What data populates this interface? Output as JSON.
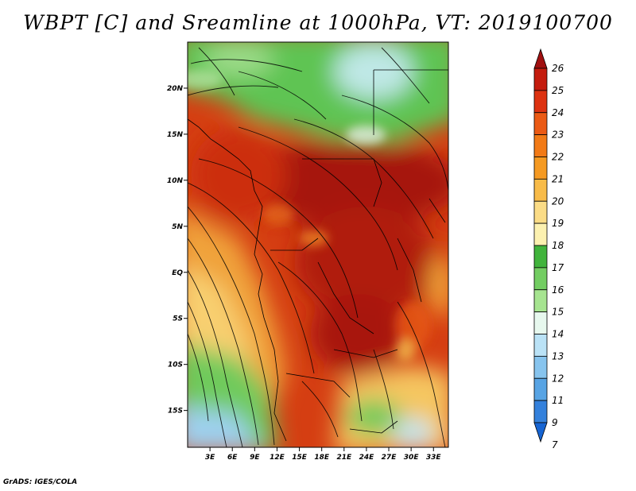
{
  "title": "WBPT [C] and Sreamline at 1000hPa, VT: 2019100700",
  "credit": "GrADS: IGES/COLA",
  "map": {
    "lat_ticks": [
      "20N",
      "15N",
      "10N",
      "5N",
      "EQ",
      "5S",
      "10S",
      "15S"
    ],
    "lon_ticks": [
      "3E",
      "6E",
      "9E",
      "12E",
      "15E",
      "18E",
      "21E",
      "24E",
      "27E",
      "30E",
      "33E"
    ],
    "lat_range": [
      -19,
      25
    ],
    "lon_range": [
      0,
      35
    ]
  },
  "colorbar": {
    "labels": [
      "26",
      "25",
      "24",
      "23",
      "22",
      "21",
      "20",
      "19",
      "18",
      "17",
      "16",
      "15",
      "14",
      "13",
      "12",
      "11",
      "9",
      "7"
    ],
    "colors": [
      "#a01010",
      "#c41c0e",
      "#dd3210",
      "#eb5a14",
      "#f27a16",
      "#f59a22",
      "#f8bb48",
      "#fbdc86",
      "#fcf1b0",
      "#41b43c",
      "#73cd62",
      "#a6e490",
      "#e7f8ee",
      "#bae2f6",
      "#87c4ee",
      "#58a4e4",
      "#3481dc",
      "#1664d2"
    ]
  }
}
